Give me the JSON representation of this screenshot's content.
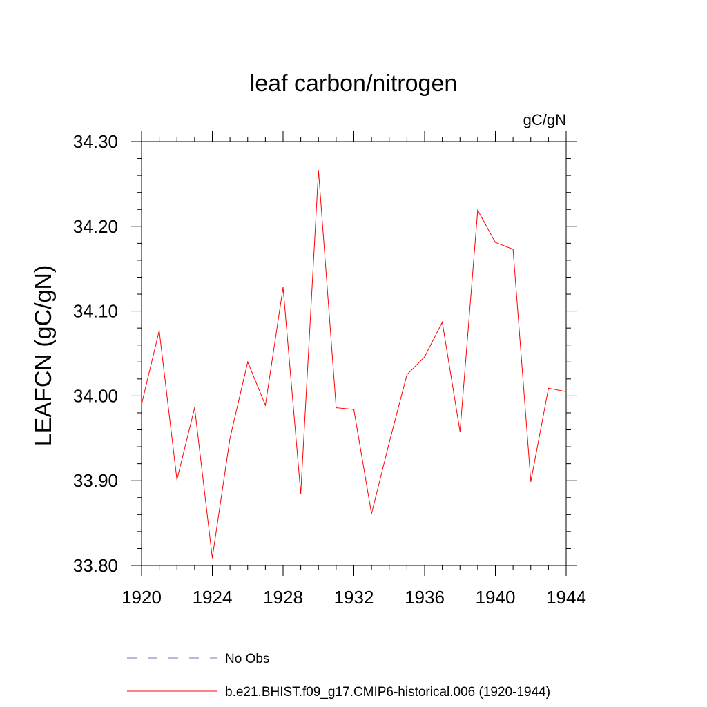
{
  "chart_data": {
    "type": "line",
    "title": "leaf carbon/nitrogen",
    "units_label": "gC/gN",
    "ylabel": "LEAFCN  (gC/gN)",
    "xlabel": "",
    "xlim": [
      1920,
      1944
    ],
    "ylim": [
      33.8,
      34.3
    ],
    "x_ticks": [
      1920,
      1924,
      1928,
      1932,
      1936,
      1940,
      1944
    ],
    "y_ticks": [
      33.8,
      33.9,
      34.0,
      34.1,
      34.2,
      34.3
    ],
    "x_tick_labels": [
      "1920",
      "1924",
      "1928",
      "1932",
      "1936",
      "1940",
      "1944"
    ],
    "y_tick_labels": [
      "33.80",
      "33.90",
      "34.00",
      "34.10",
      "34.20",
      "34.30"
    ],
    "grid": false,
    "x": [
      1920,
      1921,
      1922,
      1923,
      1924,
      1925,
      1926,
      1927,
      1928,
      1929,
      1930,
      1931,
      1932,
      1933,
      1934,
      1935,
      1936,
      1937,
      1938,
      1939,
      1940,
      1941,
      1942,
      1943,
      1944
    ],
    "series": [
      {
        "name": "b.e21.BHIST.f09_g17.CMIP6-historical.006 (1920-1944)",
        "color": "#ff0000",
        "style": "solid",
        "values": [
          33.99,
          34.077,
          33.901,
          33.986,
          33.809,
          33.95,
          34.04,
          33.989,
          34.128,
          33.885,
          34.266,
          33.986,
          33.984,
          33.861,
          33.945,
          34.025,
          34.046,
          34.087,
          33.958,
          34.219,
          34.181,
          34.173,
          33.899,
          34.009,
          34.005
        ]
      }
    ],
    "legend": {
      "placement": "bottom",
      "entries": [
        {
          "label": "No Obs",
          "color": "#7b6fbf",
          "style": "dashed"
        },
        {
          "label": "b.e21.BHIST.f09_g17.CMIP6-historical.006 (1920-1944)",
          "color": "#ff0000",
          "style": "solid"
        }
      ]
    }
  }
}
